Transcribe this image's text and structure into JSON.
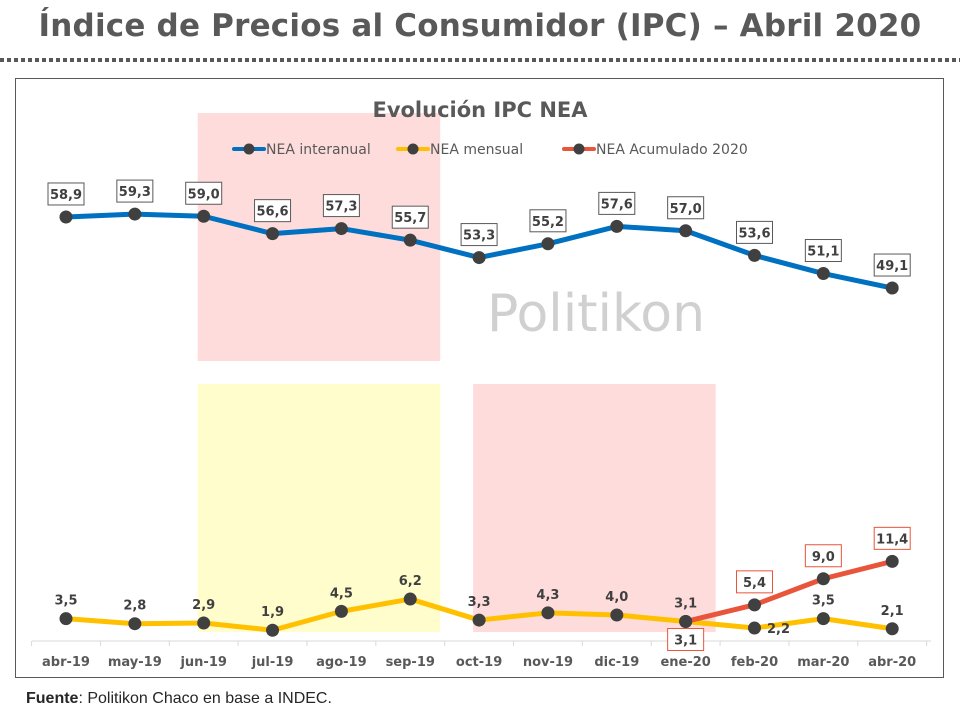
{
  "page": {
    "title": "Índice de Precios al Consumidor (IPC) – Abril 2020",
    "footer_label": "Fuente",
    "footer_text": ": Politikon Chaco en base a INDEC.",
    "watermark": "Politikon"
  },
  "chart_data": {
    "type": "line",
    "title": "Evolución IPC NEA",
    "xlabel": "",
    "ylabel": "",
    "grid": false,
    "legend_position": "top-center",
    "categories": [
      "abr-19",
      "may-19",
      "jun-19",
      "jul-19",
      "ago-19",
      "sep-19",
      "oct-19",
      "nov-19",
      "dic-19",
      "ene-20",
      "feb-20",
      "mar-20",
      "abr-20"
    ],
    "series": [
      {
        "name": "NEA interanual",
        "color": "#0070C0",
        "values": [
          58.9,
          59.3,
          59.0,
          56.6,
          57.3,
          55.7,
          53.3,
          55.2,
          57.6,
          57.0,
          53.6,
          51.1,
          49.1
        ],
        "labels": [
          "58,9",
          "59,3",
          "59,0",
          "56,6",
          "57,3",
          "55,7",
          "53,3",
          "55,2",
          "57,6",
          "57,0",
          "53,6",
          "51,1",
          "49,1"
        ],
        "label_style": "boxed"
      },
      {
        "name": "NEA mensual",
        "color": "#FFC000",
        "values": [
          3.5,
          2.8,
          2.9,
          1.9,
          4.5,
          6.2,
          3.3,
          4.3,
          4.0,
          3.1,
          2.2,
          3.5,
          2.1
        ],
        "labels": [
          "3,5",
          "2,8",
          "2,9",
          "1,9",
          "4,5",
          "6,2",
          "3,3",
          "4,3",
          "4,0",
          "3,1",
          "2,2",
          "3,5",
          "2,1"
        ],
        "label_style": "plain"
      },
      {
        "name": "NEA Acumulado 2020",
        "color": "#E8553B",
        "values": [
          null,
          null,
          null,
          null,
          null,
          null,
          null,
          null,
          null,
          3.1,
          5.4,
          9.0,
          11.4
        ],
        "labels": [
          null,
          null,
          null,
          null,
          null,
          null,
          null,
          null,
          null,
          "3,1",
          "5,4",
          "9,0",
          "11,4"
        ],
        "label_style": "boxed-red"
      }
    ],
    "marker_color": "#404040",
    "highlight_bands": [
      {
        "name": "band-interanual-jun-sep",
        "from": "jun-19",
        "to": "sep-19",
        "zone": "upper",
        "color": "#FFDCDC"
      },
      {
        "name": "band-mensual-jun-sep",
        "from": "jun-19",
        "to": "sep-19",
        "zone": "lower",
        "color": "#FFFDCC"
      },
      {
        "name": "band-mensual-oct-ene",
        "from": "oct-19",
        "to": "ene-20",
        "zone": "lower",
        "color": "#FFDCDC"
      }
    ]
  }
}
